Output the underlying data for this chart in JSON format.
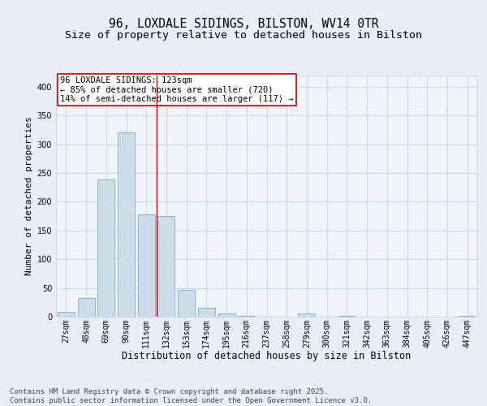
{
  "title": "96, LOXDALE SIDINGS, BILSTON, WV14 0TR",
  "subtitle": "Size of property relative to detached houses in Bilston",
  "xlabel": "Distribution of detached houses by size in Bilston",
  "ylabel": "Number of detached properties",
  "categories": [
    "27sqm",
    "48sqm",
    "69sqm",
    "90sqm",
    "111sqm",
    "132sqm",
    "153sqm",
    "174sqm",
    "195sqm",
    "216sqm",
    "237sqm",
    "258sqm",
    "279sqm",
    "300sqm",
    "321sqm",
    "342sqm",
    "363sqm",
    "384sqm",
    "405sqm",
    "426sqm",
    "447sqm"
  ],
  "values": [
    8,
    32,
    238,
    320,
    178,
    175,
    46,
    16,
    6,
    2,
    0,
    0,
    5,
    0,
    2,
    0,
    0,
    0,
    0,
    0,
    2
  ],
  "bar_color": "#ccdce8",
  "bar_edge_color": "#7aaac8",
  "grid_color": "#c5d5e5",
  "bg_color": "#e8eef4",
  "ax_bg_color": "#f0f4f8",
  "vline_x_idx": 4,
  "vline_color": "#cc0000",
  "annotation_text": "96 LOXDALE SIDINGS: 123sqm\n← 85% of detached houses are smaller (720)\n14% of semi-detached houses are larger (117) →",
  "annotation_box_color": "#ffffff",
  "annotation_box_edge": "#cc0000",
  "footer_text": "Contains HM Land Registry data © Crown copyright and database right 2025.\nContains public sector information licensed under the Open Government Licence v3.0.",
  "ylim": [
    0,
    420
  ],
  "yticks": [
    0,
    50,
    100,
    150,
    200,
    250,
    300,
    350,
    400
  ],
  "title_fontsize": 10.5,
  "subtitle_fontsize": 9.5,
  "xlabel_fontsize": 8.5,
  "ylabel_fontsize": 8,
  "tick_fontsize": 7,
  "annotation_fontsize": 7.5,
  "footer_fontsize": 6.5
}
